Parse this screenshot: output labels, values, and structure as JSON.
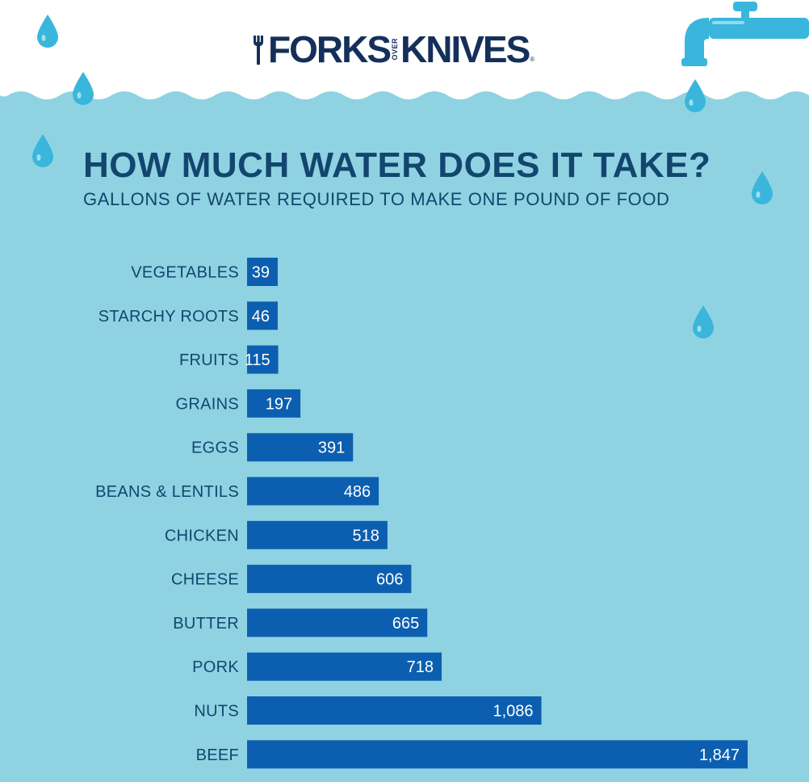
{
  "header": {
    "logo_word_1": "FORKS",
    "logo_word_small": "OVER",
    "logo_word_2": "KNIVES",
    "logo_mark": "®"
  },
  "colors": {
    "background": "#8fd3e2",
    "header_band": "#ffffff",
    "bar": "#0c5fb0",
    "text": "#13466e",
    "drop": "#3ab6dc"
  },
  "icons": [
    "water-drop-icon",
    "faucet-icon",
    "fork-knife-logo-icon"
  ],
  "chart_data": {
    "type": "bar",
    "orientation": "horizontal",
    "title": "HOW MUCH WATER DOES IT TAKE?",
    "subtitle": "GALLONS OF WATER REQUIRED TO MAKE ONE POUND OF FOOD",
    "categories": [
      "VEGETABLES",
      "STARCHY ROOTS",
      "FRUITS",
      "GRAINS",
      "EGGS",
      "BEANS & LENTILS",
      "CHICKEN",
      "CHEESE",
      "BUTTER",
      "PORK",
      "NUTS",
      "BEEF"
    ],
    "values": [
      39,
      46,
      115,
      197,
      391,
      486,
      518,
      606,
      665,
      718,
      1086,
      1847
    ],
    "value_labels": [
      "39",
      "46",
      "115",
      "197",
      "391",
      "486",
      "518",
      "606",
      "665",
      "718",
      "1,086",
      "1,847"
    ],
    "xlim": [
      0,
      1847
    ],
    "grid": false,
    "legend": "none"
  }
}
